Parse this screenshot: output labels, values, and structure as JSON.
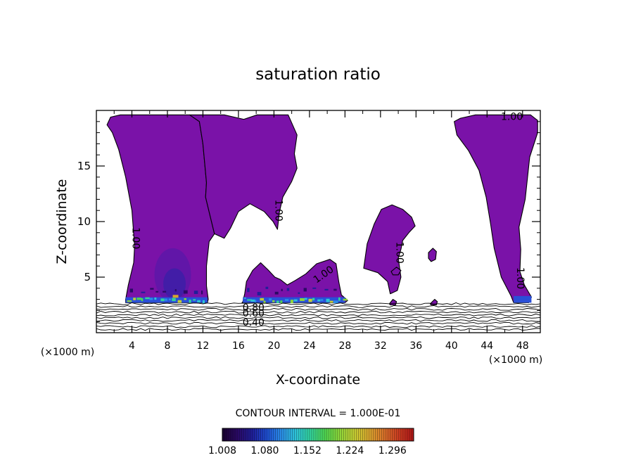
{
  "chart_data": {
    "type": "heatmap",
    "title": "saturation ratio",
    "xlabel": "X-coordinate",
    "ylabel": "Z-coordinate",
    "x_unit_left": "(×1000 m)",
    "x_unit_right": "(×1000 m)",
    "xlim": [
      0,
      50
    ],
    "ylim": [
      0,
      20
    ],
    "x_ticks": [
      4,
      8,
      12,
      16,
      20,
      24,
      28,
      32,
      36,
      40,
      44,
      48
    ],
    "y_ticks": [
      5,
      10,
      15
    ],
    "contour_interval_label": "CONTOUR INTERVAL = 1.000E-01",
    "contour_labels": [
      {
        "text": "1.00",
        "x": 4.4,
        "z": 8.5,
        "rotate": 90
      },
      {
        "text": "1.00",
        "x": 20.5,
        "z": 11.0,
        "rotate": 90
      },
      {
        "text": "1.00",
        "x": 25.6,
        "z": 5.2,
        "rotate": -35
      },
      {
        "text": "1.00",
        "x": 34.1,
        "z": 7.2,
        "rotate": 90
      },
      {
        "text": "1.00",
        "x": 47.7,
        "z": 4.9,
        "rotate": 90
      },
      {
        "text": "1.00",
        "x": 46.8,
        "z": 19.4,
        "rotate": 0
      },
      {
        "text": "0.80",
        "x": 17.7,
        "z": 2.2,
        "rotate": 0
      },
      {
        "text": "0.60",
        "x": 17.7,
        "z": 1.7,
        "rotate": 0
      },
      {
        "text": "0.40",
        "x": 17.7,
        "z": 0.9,
        "rotate": 0
      }
    ],
    "regions": [
      {
        "name": "left-plume",
        "outline": [
          [
            1.2,
            18.7
          ],
          [
            1.6,
            19.4
          ],
          [
            2.7,
            19.6
          ],
          [
            10.5,
            19.6
          ],
          [
            11.6,
            19.0
          ],
          [
            12.0,
            17.0
          ],
          [
            12.4,
            13.5
          ],
          [
            12.3,
            12.2
          ],
          [
            12.9,
            10.2
          ],
          [
            13.3,
            8.9
          ],
          [
            12.7,
            8.2
          ],
          [
            12.4,
            6.0
          ],
          [
            12.4,
            4.2
          ],
          [
            12.6,
            3.0
          ],
          [
            12.5,
            2.7
          ],
          [
            3.3,
            2.7
          ],
          [
            3.3,
            3.0
          ],
          [
            3.6,
            4.3
          ],
          [
            4.2,
            6.3
          ],
          [
            4.3,
            7.8
          ],
          [
            4.0,
            11.0
          ],
          [
            3.3,
            14.0
          ],
          [
            2.5,
            16.5
          ],
          [
            1.8,
            18.0
          ]
        ]
      },
      {
        "name": "center-plume",
        "outline": [
          [
            10.5,
            19.6
          ],
          [
            14.4,
            19.6
          ],
          [
            16.6,
            19.2
          ],
          [
            18.1,
            19.6
          ],
          [
            21.6,
            19.6
          ],
          [
            22.6,
            17.8
          ],
          [
            22.3,
            16.1
          ],
          [
            22.6,
            14.8
          ],
          [
            22.0,
            13.6
          ],
          [
            21.0,
            12.2
          ],
          [
            20.6,
            10.8
          ],
          [
            20.4,
            9.3
          ],
          [
            19.9,
            10.0
          ],
          [
            18.9,
            10.9
          ],
          [
            17.3,
            11.6
          ],
          [
            16.0,
            10.9
          ],
          [
            15.1,
            9.4
          ],
          [
            14.4,
            8.5
          ],
          [
            13.3,
            8.9
          ],
          [
            12.9,
            10.2
          ],
          [
            12.3,
            12.2
          ],
          [
            12.4,
            13.5
          ],
          [
            12.0,
            17.0
          ],
          [
            11.6,
            19.0
          ]
        ]
      },
      {
        "name": "mid-cloud",
        "outline": [
          [
            16.5,
            2.8
          ],
          [
            16.7,
            3.5
          ],
          [
            16.9,
            4.6
          ],
          [
            17.6,
            5.6
          ],
          [
            18.5,
            6.3
          ],
          [
            19.4,
            5.6
          ],
          [
            20.1,
            5.0
          ],
          [
            20.7,
            4.8
          ],
          [
            21.5,
            4.3
          ],
          [
            22.4,
            4.7
          ],
          [
            23.6,
            5.3
          ],
          [
            24.8,
            6.2
          ],
          [
            26.3,
            6.6
          ],
          [
            27.0,
            6.2
          ],
          [
            27.3,
            4.6
          ],
          [
            27.6,
            3.4
          ],
          [
            28.3,
            2.9
          ],
          [
            28.0,
            2.7
          ],
          [
            16.4,
            2.7
          ]
        ]
      },
      {
        "name": "right-mid-cloud",
        "outline": [
          [
            30.1,
            5.8
          ],
          [
            30.5,
            8.0
          ],
          [
            31.3,
            9.8
          ],
          [
            32.1,
            11.1
          ],
          [
            33.3,
            11.5
          ],
          [
            34.5,
            11.1
          ],
          [
            35.5,
            10.4
          ],
          [
            35.9,
            9.6
          ],
          [
            35.2,
            9.0
          ],
          [
            34.5,
            8.3
          ],
          [
            34.3,
            7.5
          ],
          [
            34.0,
            6.7
          ],
          [
            34.3,
            5.0
          ],
          [
            33.9,
            3.8
          ],
          [
            33.1,
            3.5
          ],
          [
            32.8,
            4.6
          ],
          [
            31.7,
            5.4
          ]
        ]
      },
      {
        "name": "right-plume",
        "outline": [
          [
            40.3,
            19.0
          ],
          [
            41.0,
            19.3
          ],
          [
            42.7,
            19.6
          ],
          [
            47.2,
            19.6
          ],
          [
            48.9,
            19.6
          ],
          [
            49.7,
            19.1
          ],
          [
            49.7,
            18.0
          ],
          [
            48.8,
            15.8
          ],
          [
            48.3,
            12.0
          ],
          [
            47.6,
            9.5
          ],
          [
            47.8,
            7.5
          ],
          [
            47.7,
            5.5
          ],
          [
            48.2,
            4.3
          ],
          [
            49.0,
            3.2
          ],
          [
            48.7,
            2.7
          ],
          [
            47.0,
            2.7
          ],
          [
            46.7,
            3.3
          ],
          [
            45.6,
            5.0
          ],
          [
            44.8,
            7.6
          ],
          [
            44.4,
            9.8
          ],
          [
            43.9,
            12.2
          ],
          [
            43.1,
            14.6
          ],
          [
            41.9,
            16.4
          ],
          [
            40.6,
            17.8
          ]
        ]
      },
      {
        "name": "cloud-small-a",
        "outline": [
          [
            33.2,
            5.5
          ],
          [
            33.8,
            5.9
          ],
          [
            34.3,
            5.6
          ],
          [
            34.0,
            5.2
          ],
          [
            33.4,
            5.2
          ]
        ]
      },
      {
        "name": "cloud-small-b",
        "outline": [
          [
            37.4,
            7.2
          ],
          [
            37.9,
            7.6
          ],
          [
            38.3,
            7.3
          ],
          [
            38.2,
            6.6
          ],
          [
            37.7,
            6.4
          ],
          [
            37.4,
            6.7
          ]
        ]
      },
      {
        "name": "cloud-dot-a",
        "outline": [
          [
            33.0,
            2.6
          ],
          [
            33.4,
            3.0
          ],
          [
            33.8,
            2.8
          ],
          [
            33.7,
            2.5
          ],
          [
            33.1,
            2.5
          ]
        ]
      },
      {
        "name": "cloud-dot-b",
        "outline": [
          [
            37.6,
            2.6
          ],
          [
            38.1,
            3.0
          ],
          [
            38.4,
            2.8
          ],
          [
            38.3,
            2.5
          ],
          [
            37.7,
            2.5
          ]
        ]
      }
    ],
    "colorbar": {
      "min": 1.008,
      "max": 1.332,
      "tick_labels": [
        "1.008",
        "1.080",
        "1.152",
        "1.224",
        "1.296"
      ],
      "colors": [
        "#1a0033",
        "#2a0a66",
        "#1f1f99",
        "#1e4fd1",
        "#2a8de6",
        "#2ec4d6",
        "#33d19a",
        "#4fd44f",
        "#8ed43a",
        "#c4cc33",
        "#d8a52e",
        "#d8732a",
        "#cc3f22",
        "#b01818"
      ]
    }
  }
}
